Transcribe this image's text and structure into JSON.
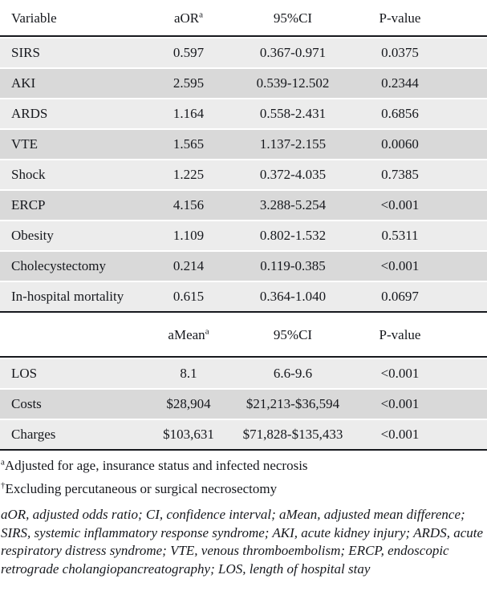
{
  "table": {
    "section1": {
      "headers": {
        "variable": "Variable",
        "aor": "aOR",
        "aor_sup": "a",
        "ci": "95%CI",
        "p": "P-value"
      },
      "rows": [
        {
          "variable": "SIRS",
          "value": "0.597",
          "ci": "0.367-0.971",
          "p": "0.0375"
        },
        {
          "variable": "AKI",
          "value": "2.595",
          "ci": "0.539-12.502",
          "p": "0.2344"
        },
        {
          "variable": "ARDS",
          "value": "1.164",
          "ci": "0.558-2.431",
          "p": "0.6856"
        },
        {
          "variable": "VTE",
          "value": "1.565",
          "ci": "1.137-2.155",
          "p": "0.0060"
        },
        {
          "variable": "Shock",
          "value": "1.225",
          "ci": "0.372-4.035",
          "p": "0.7385"
        },
        {
          "variable": "ERCP",
          "value": "4.156",
          "ci": "3.288-5.254",
          "p": "<0.001"
        },
        {
          "variable": "Obesity",
          "value": "1.109",
          "ci": "0.802-1.532",
          "p": "0.5311"
        },
        {
          "variable": "Cholecystectomy",
          "value": "0.214",
          "ci": "0.119-0.385",
          "p": "<0.001"
        },
        {
          "variable": "In-hospital mortality",
          "value": "0.615",
          "ci": "0.364-1.040",
          "p": "0.0697"
        }
      ]
    },
    "section2": {
      "headers": {
        "amean": "aMean",
        "amean_sup": "a",
        "ci": "95%CI",
        "p": "P-value"
      },
      "rows": [
        {
          "variable": "LOS",
          "value": "8.1",
          "ci": "6.6-9.6",
          "p": "<0.001"
        },
        {
          "variable": "Costs",
          "value": "$28,904",
          "ci": "$21,213-$36,594",
          "p": "<0.001"
        },
        {
          "variable": "Charges",
          "value": "$103,631",
          "ci": "$71,828-$135,433",
          "p": "<0.001"
        }
      ]
    }
  },
  "footnotes": {
    "note_a_marker": "a",
    "note_a_text": "Adjusted for age, insurance status and infected necrosis",
    "note_dagger_marker": "†",
    "note_dagger_text": "Excluding percutaneous or surgical necrosectomy",
    "abbreviations": "aOR, adjusted odds ratio; CI, confidence interval; aMean, adjusted mean difference; SIRS, systemic inflammatory response syndrome; AKI, acute kidney injury; ARDS, acute respiratory distress syndrome; VTE, venous thromboembolism; ERCP, endoscopic retrograde cholangiopancreatography; LOS, length of hospital stay"
  },
  "colors": {
    "row_light": "#ececec",
    "row_dark": "#d9d9d9",
    "rule": "#16181d",
    "text": "#16181d"
  }
}
